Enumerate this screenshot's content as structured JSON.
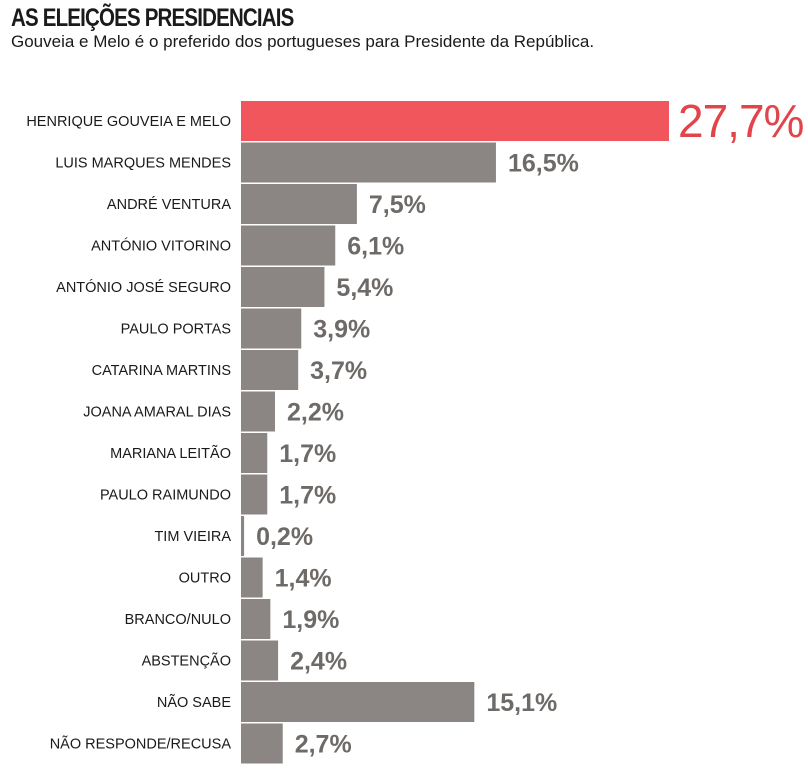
{
  "header": {
    "title": "AS ELEIÇÕES PRESIDENCIAIS",
    "subtitle": "Gouveia e Melo é o preferido dos portugueses para Presidente da República."
  },
  "colors": {
    "highlight": "#f0565b",
    "highlight_text": "#e2444b",
    "bar": "#8b8683",
    "value_text": "#6e6a67"
  },
  "chart_data": {
    "type": "bar",
    "orientation": "horizontal",
    "title": "AS ELEIÇÕES PRESIDENCIAIS",
    "subtitle": "Gouveia e Melo é o preferido dos portugueses para Presidente da República.",
    "unit": "%",
    "categories": [
      "HENRIQUE GOUVEIA E MELO",
      "LUIS MARQUES MENDES",
      "ANDRÉ VENTURA",
      "ANTÓNIO VITORINO",
      "ANTÓNIO JOSÉ SEGURO",
      "PAULO PORTAS",
      "CATARINA MARTINS",
      "JOANA AMARAL DIAS",
      "MARIANA LEITÃO",
      "PAULO RAIMUNDO",
      "TIM VIEIRA",
      "OUTRO",
      "BRANCO/NULO",
      "ABSTENÇÃO",
      "NÃO SABE",
      "NÃO RESPONDE/RECUSA"
    ],
    "values": [
      27.7,
      16.5,
      7.5,
      6.1,
      5.4,
      3.9,
      3.7,
      2.2,
      1.7,
      1.7,
      0.2,
      1.4,
      1.9,
      2.4,
      15.1,
      2.7
    ],
    "value_labels": [
      "27,7%",
      "16,5%",
      "7,5%",
      "6,1%",
      "5,4%",
      "3,9%",
      "3,7%",
      "2,2%",
      "1,7%",
      "1,7%",
      "0,2%",
      "1,4%",
      "1,9%",
      "2,4%",
      "15,1%",
      "2,7%"
    ],
    "highlight_index": 0,
    "xlim": [
      0,
      27.7
    ],
    "grid": false,
    "xlabel": "",
    "ylabel": ""
  }
}
